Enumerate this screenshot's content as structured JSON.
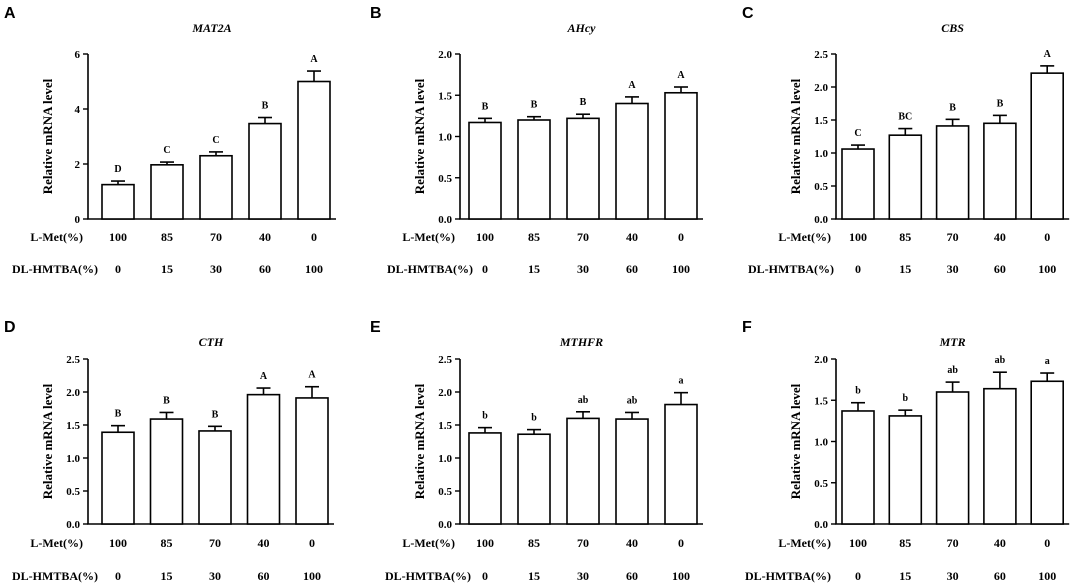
{
  "row_labels": {
    "lmet": "L-Met(%)",
    "dlhmtba": "DL-HMTBA(%)"
  },
  "lmet_values": [
    "100",
    "85",
    "70",
    "40",
    "0"
  ],
  "dlhmtba_values": [
    "0",
    "15",
    "30",
    "60",
    "100"
  ],
  "chart_data": [
    {
      "type": "bar",
      "panel": "A",
      "title": "MAT2A",
      "ylabel": "Relative mRNA level",
      "ylim": [
        0,
        6
      ],
      "yticks": [
        0,
        2,
        4,
        6
      ],
      "ytick_labels": [
        "0",
        "2",
        "4",
        "6"
      ],
      "categories": [
        "100/0",
        "85/15",
        "70/30",
        "40/60",
        "0/100"
      ],
      "values": [
        1.25,
        1.97,
        2.3,
        3.47,
        5.0
      ],
      "errors": [
        0.13,
        0.1,
        0.14,
        0.22,
        0.38
      ],
      "significance": [
        "D",
        "C",
        "C",
        "B",
        "A"
      ]
    },
    {
      "type": "bar",
      "panel": "B",
      "title": "AHcy",
      "ylabel": "Relative mRNA level",
      "ylim": [
        0,
        2
      ],
      "yticks": [
        0,
        0.5,
        1,
        1.5,
        2
      ],
      "ytick_labels": [
        "0.0",
        "0.5",
        "1.0",
        "1.5",
        "2.0"
      ],
      "categories": [
        "100/0",
        "85/15",
        "70/30",
        "40/60",
        "0/100"
      ],
      "values": [
        1.17,
        1.2,
        1.22,
        1.4,
        1.53
      ],
      "errors": [
        0.05,
        0.04,
        0.05,
        0.08,
        0.07
      ],
      "significance": [
        "B",
        "B",
        "B",
        "A",
        "A"
      ]
    },
    {
      "type": "bar",
      "panel": "C",
      "title": "CBS",
      "ylabel": "Relative mRNA level",
      "ylim": [
        0,
        2.5
      ],
      "yticks": [
        0,
        0.5,
        1,
        1.5,
        2,
        2.5
      ],
      "ytick_labels": [
        "0.0",
        "0.5",
        "1.0",
        "1.5",
        "2.0",
        "2.5"
      ],
      "categories": [
        "100/0",
        "85/15",
        "70/30",
        "40/60",
        "0/100"
      ],
      "values": [
        1.06,
        1.27,
        1.41,
        1.45,
        2.21
      ],
      "errors": [
        0.06,
        0.1,
        0.1,
        0.12,
        0.11
      ],
      "significance": [
        "C",
        "BC",
        "B",
        "B",
        "A"
      ]
    },
    {
      "type": "bar",
      "panel": "D",
      "title": "CTH",
      "ylabel": "Relative mRNA level",
      "ylim": [
        0,
        2.5
      ],
      "yticks": [
        0,
        0.5,
        1,
        1.5,
        2,
        2.5
      ],
      "ytick_labels": [
        "0.0",
        "0.5",
        "1.0",
        "1.5",
        "2.0",
        "2.5"
      ],
      "categories": [
        "100/0",
        "85/15",
        "70/30",
        "40/60",
        "0/100"
      ],
      "values": [
        1.39,
        1.59,
        1.41,
        1.96,
        1.91
      ],
      "errors": [
        0.1,
        0.1,
        0.07,
        0.1,
        0.17
      ],
      "significance": [
        "B",
        "B",
        "B",
        "A",
        "A"
      ]
    },
    {
      "type": "bar",
      "panel": "E",
      "title": "MTHFR",
      "ylabel": "Relative mRNA level",
      "ylim": [
        0,
        2.5
      ],
      "yticks": [
        0,
        0.5,
        1,
        1.5,
        2,
        2.5
      ],
      "ytick_labels": [
        "0.0",
        "0.5",
        "1.0",
        "1.5",
        "2.0",
        "2.5"
      ],
      "categories": [
        "100/0",
        "85/15",
        "70/30",
        "40/60",
        "0/100"
      ],
      "values": [
        1.38,
        1.36,
        1.6,
        1.59,
        1.81
      ],
      "errors": [
        0.08,
        0.07,
        0.1,
        0.1,
        0.18
      ],
      "significance": [
        "b",
        "b",
        "ab",
        "ab",
        "a"
      ]
    },
    {
      "type": "bar",
      "panel": "F",
      "title": "MTR",
      "ylabel": "Relative mRNA level",
      "ylim": [
        0,
        2
      ],
      "yticks": [
        0,
        0.5,
        1,
        1.5,
        2
      ],
      "ytick_labels": [
        "0.0",
        "0.5",
        "1.0",
        "1.5",
        "2.0"
      ],
      "categories": [
        "100/0",
        "85/15",
        "70/30",
        "40/60",
        "0/100"
      ],
      "values": [
        1.37,
        1.31,
        1.6,
        1.64,
        1.73
      ],
      "errors": [
        0.1,
        0.07,
        0.12,
        0.2,
        0.1
      ],
      "significance": [
        "b",
        "b",
        "ab",
        "ab",
        "a"
      ]
    }
  ]
}
